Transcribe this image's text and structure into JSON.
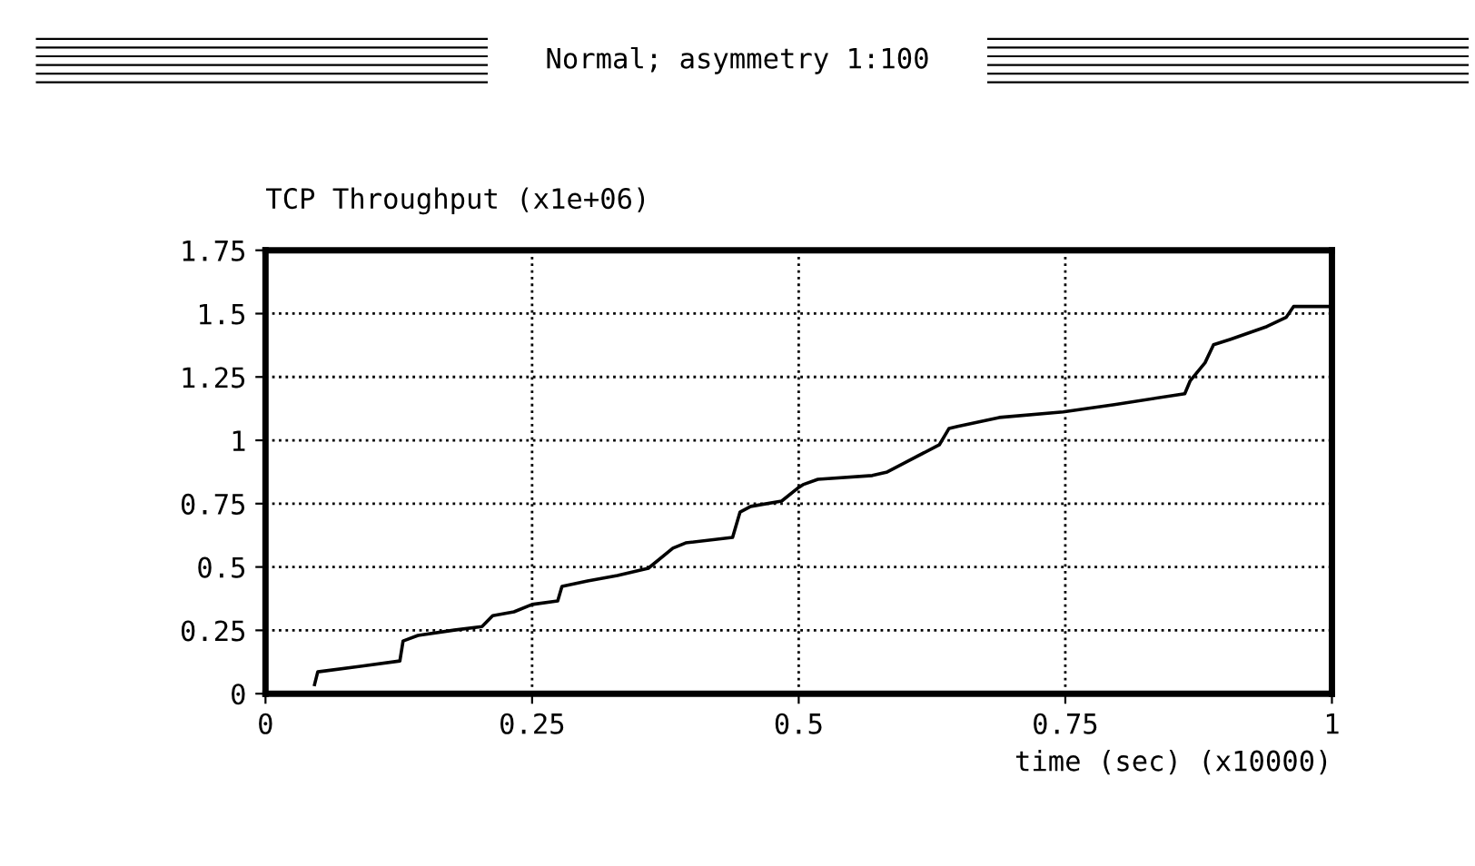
{
  "chart_data": {
    "type": "line",
    "title": "Normal; asymmetry 1:100",
    "ylabel": "TCP Throughput (x1e+06)",
    "xlabel": "time (sec) (x10000)",
    "x": [
      0.046,
      0.049,
      0.089,
      0.126,
      0.129,
      0.143,
      0.177,
      0.203,
      0.213,
      0.233,
      0.25,
      0.274,
      0.278,
      0.302,
      0.33,
      0.359,
      0.382,
      0.394,
      0.438,
      0.445,
      0.455,
      0.484,
      0.499,
      0.504,
      0.518,
      0.569,
      0.583,
      0.632,
      0.641,
      0.649,
      0.688,
      0.748,
      0.796,
      0.862,
      0.867,
      0.881,
      0.889,
      0.905,
      0.939,
      0.957,
      0.964,
      0.998
    ],
    "series": [
      {
        "color": "#000000",
        "values": [
          0.036,
          0.086,
          0.108,
          0.129,
          0.208,
          0.23,
          0.251,
          0.265,
          0.308,
          0.323,
          0.352,
          0.366,
          0.423,
          0.445,
          0.466,
          0.495,
          0.574,
          0.595,
          0.617,
          0.717,
          0.739,
          0.76,
          0.811,
          0.825,
          0.846,
          0.861,
          0.875,
          0.983,
          1.047,
          1.055,
          1.09,
          1.112,
          1.141,
          1.184,
          1.234,
          1.306,
          1.377,
          1.399,
          1.449,
          1.485,
          1.528,
          1.528
        ]
      }
    ],
    "xlim": [
      0,
      1
    ],
    "ylim": [
      0,
      1.75
    ],
    "xticks": [
      0,
      0.25,
      0.5,
      0.75,
      1
    ],
    "yticks": [
      0,
      0.25,
      0.5,
      0.75,
      1,
      1.25,
      1.5,
      1.75
    ],
    "grid": true,
    "marker": "none",
    "line_style": "solid",
    "legend": false
  }
}
